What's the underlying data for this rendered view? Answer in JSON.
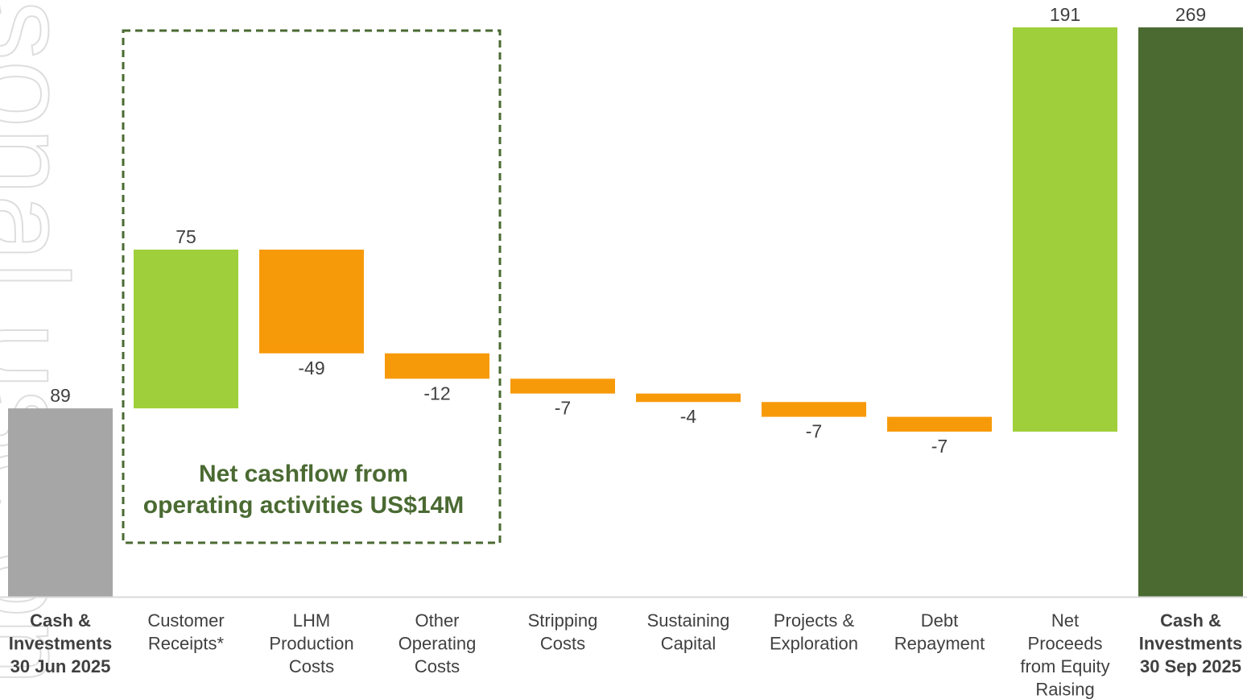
{
  "chart_data": {
    "type": "bar",
    "subtype": "waterfall",
    "title": "",
    "xlabel": "",
    "ylabel": "",
    "categories": [
      "Cash & Investments 30 Jun 2025",
      "Customer Receipts*",
      "LHM Production Costs",
      "Other Operating Costs",
      "Stripping Costs",
      "Sustaining Capital",
      "Projects & Exploration",
      "Debt Repayment",
      "Net Proceeds from Equity Raising",
      "Cash & Investments 30 Sep 2025"
    ],
    "category_lines": [
      [
        "Cash &",
        "Investments",
        "30 Jun 2025"
      ],
      [
        "Customer",
        "Receipts*"
      ],
      [
        "LHM",
        "Production",
        "Costs"
      ],
      [
        "Other",
        "Operating",
        "Costs"
      ],
      [
        "Stripping",
        "Costs"
      ],
      [
        "Sustaining",
        "Capital"
      ],
      [
        "Projects &",
        "Exploration"
      ],
      [
        "Debt",
        "Repayment"
      ],
      [
        "Net",
        "Proceeds",
        "from Equity",
        "Raising"
      ],
      [
        "Cash &",
        "Investments",
        "30 Sep 2025"
      ]
    ],
    "bold_categories": [
      0,
      9
    ],
    "values": [
      89,
      75,
      -49,
      -12,
      -7,
      -4,
      -7,
      -7,
      191,
      269
    ],
    "value_labels": [
      "89",
      "75",
      "-49",
      "-12",
      "-7",
      "-4",
      "-7",
      "-7",
      "191",
      "269"
    ],
    "bar_kinds": [
      "total",
      "increase",
      "decrease",
      "decrease",
      "decrease",
      "decrease",
      "decrease",
      "decrease",
      "increase",
      "total"
    ],
    "colors": {
      "start_total": "#a6a6a6",
      "end_total": "#4a6a32",
      "increase": "#9fcf3a",
      "decrease": "#f79a0a",
      "axis": "#d9d9d9",
      "annotation": "#4a6a32"
    },
    "ylim": [
      0,
      275
    ],
    "grid": false,
    "legend": "none",
    "annotation": {
      "lines": [
        "Net cashflow from",
        "operating activities US$14M"
      ],
      "spans_categories": [
        1,
        3
      ],
      "style": "dashed-box"
    }
  },
  "watermark": {
    "text": "For personal use only",
    "visible_text": "sonal use on"
  }
}
